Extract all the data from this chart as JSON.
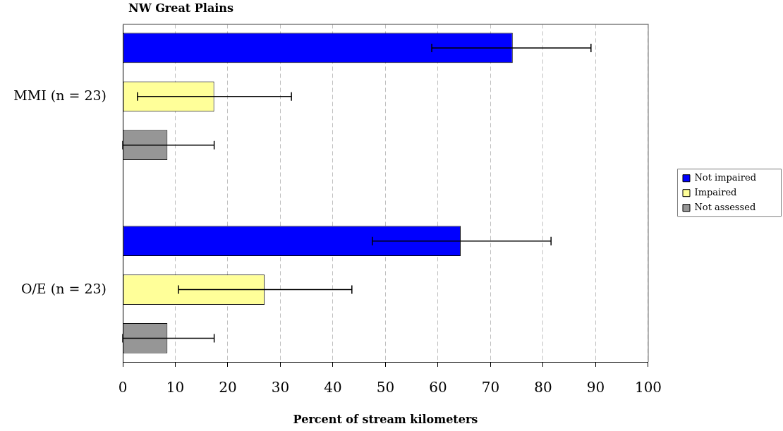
{
  "chart_data": {
    "type": "bar",
    "orientation": "horizontal",
    "title": "NW Great Plains",
    "xlabel": "Percent of stream kilometers",
    "categories": [
      "MMI (n = 23)",
      "O/E (n = 23)"
    ],
    "series": [
      {
        "name": "Not impaired",
        "color": "#0000ff",
        "values": [
          74.2,
          64.3
        ],
        "errors": [
          [
            58.8,
            89.1
          ],
          [
            47.5,
            81.5
          ]
        ]
      },
      {
        "name": "Impaired",
        "color": "#ffff99",
        "values": [
          17.4,
          27.0
        ],
        "errors": [
          [
            2.8,
            32.1
          ],
          [
            10.6,
            43.6
          ]
        ]
      },
      {
        "name": "Not assessed",
        "color": "#969696",
        "values": [
          8.5,
          8.5
        ],
        "errors": [
          [
            0,
            17.4
          ],
          [
            0,
            17.4
          ]
        ]
      }
    ],
    "xlim": [
      0,
      100
    ],
    "xticks": [
      0,
      10,
      20,
      30,
      40,
      50,
      60,
      70,
      80,
      90,
      100
    ],
    "grid": "x",
    "legend": "right"
  }
}
